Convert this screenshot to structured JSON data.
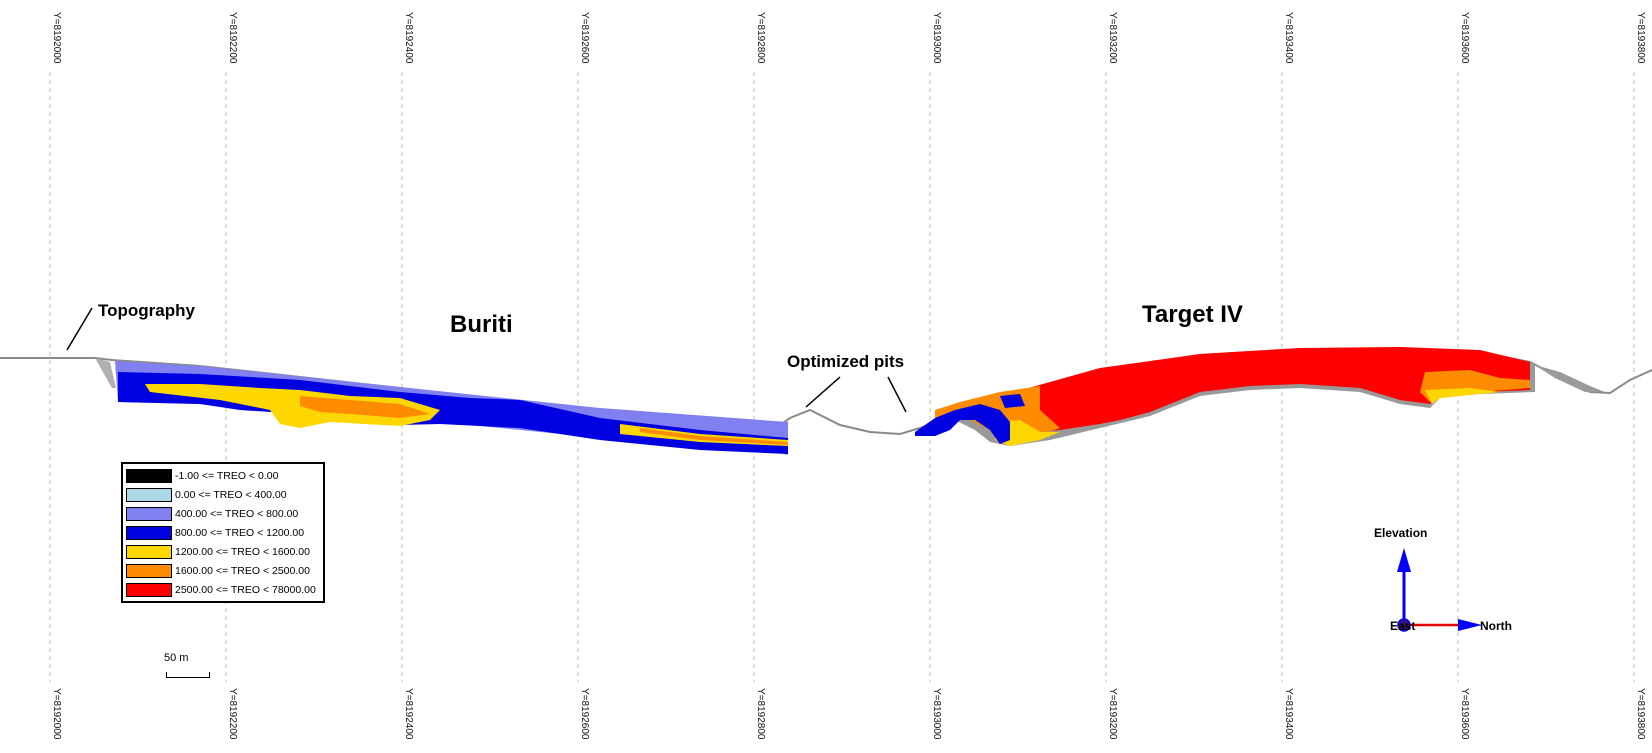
{
  "grid": {
    "labels": [
      "Y=8192000",
      "Y=8192200",
      "Y=8192400",
      "Y=8192600",
      "Y=8192800",
      "Y=8193000",
      "Y=8193200",
      "Y=8193400",
      "Y=8193600",
      "Y=8193800"
    ]
  },
  "titles": {
    "buriti": "Buriti",
    "target": "Target IV"
  },
  "annotations": {
    "topography": "Topography",
    "optimized_pits": "Optimized pits"
  },
  "legend": {
    "items": [
      {
        "label": "-1.00 <= TREO < 0.00",
        "color": "#000000"
      },
      {
        "label": "0.00 <= TREO < 400.00",
        "color": "#add8e6"
      },
      {
        "label": "400.00 <= TREO < 800.00",
        "color": "#8080f0"
      },
      {
        "label": "800.00 <= TREO < 1200.00",
        "color": "#0000e0"
      },
      {
        "label": "1200.00 <= TREO < 1600.00",
        "color": "#ffd700"
      },
      {
        "label": "1600.00 <= TREO < 2500.00",
        "color": "#ff8c00"
      },
      {
        "label": "2500.00 <= TREO < 78000.00",
        "color": "#ff0000"
      }
    ]
  },
  "scale": {
    "label": "50 m"
  },
  "orientation": {
    "elevation": "Elevation",
    "east": "East",
    "north": "North"
  },
  "colors": {
    "low": "#8080f0",
    "mid": "#0000e0",
    "yellow": "#ffd700",
    "orange": "#ff8c00",
    "red": "#ff0000",
    "topo": "#8a8a8a",
    "grid": "#bbbbbb"
  }
}
